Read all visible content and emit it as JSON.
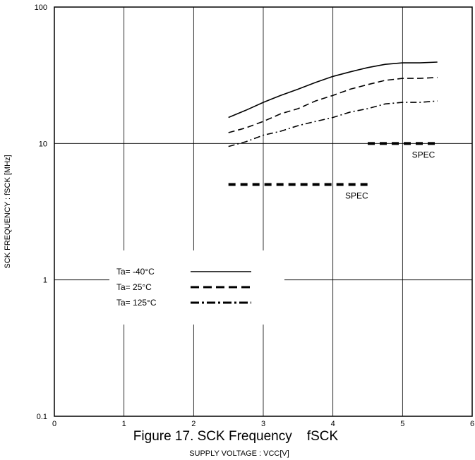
{
  "chart_data": {
    "type": "line",
    "title": "Figure 17. SCK Frequency    fSCK",
    "xlabel": "SUPPLY VOLTAGE : VCC[V]",
    "ylabel": "SCK FREQUENCY : fSCK [MHz]",
    "xlim": [
      0,
      6
    ],
    "ylim": [
      0.1,
      100
    ],
    "yscale": "log",
    "grid": true,
    "x_ticks": [
      "0",
      "1",
      "2",
      "3",
      "4",
      "5",
      "6"
    ],
    "y_ticks": [
      "0.1",
      "1",
      "10",
      "100"
    ],
    "legend_position": "left-center",
    "series": [
      {
        "name": "Ta= -40°C",
        "style": "solid",
        "x": [
          2.5,
          2.75,
          3.0,
          3.25,
          3.5,
          3.75,
          4.0,
          4.25,
          4.5,
          4.75,
          5.0,
          5.25,
          5.5
        ],
        "y": [
          15.5,
          17.5,
          20.0,
          22.5,
          25.0,
          28.0,
          31.0,
          33.5,
          36.0,
          38.0,
          39.0,
          39.0,
          39.5
        ]
      },
      {
        "name": "Ta=  25°C",
        "style": "dashed",
        "x": [
          2.5,
          2.75,
          3.0,
          3.25,
          3.5,
          3.75,
          4.0,
          4.25,
          4.5,
          4.75,
          5.0,
          5.25,
          5.5
        ],
        "y": [
          12.0,
          13.0,
          14.5,
          16.5,
          18.0,
          20.5,
          22.5,
          25.0,
          27.0,
          29.0,
          30.0,
          30.0,
          30.5
        ]
      },
      {
        "name": "Ta= 125°C",
        "style": "dashdot",
        "x": [
          2.5,
          2.75,
          3.0,
          3.25,
          3.5,
          3.75,
          4.0,
          4.25,
          4.5,
          4.75,
          5.0,
          5.25,
          5.5
        ],
        "y": [
          9.5,
          10.3,
          11.5,
          12.3,
          13.5,
          14.5,
          15.5,
          17.0,
          18.0,
          19.5,
          20.0,
          20.0,
          20.5
        ]
      }
    ],
    "spec_lines": [
      {
        "label": "SPEC",
        "x": [
          2.5,
          4.5
        ],
        "y": 5
      },
      {
        "label": "SPEC",
        "x": [
          4.5,
          5.5
        ],
        "y": 10
      }
    ]
  }
}
